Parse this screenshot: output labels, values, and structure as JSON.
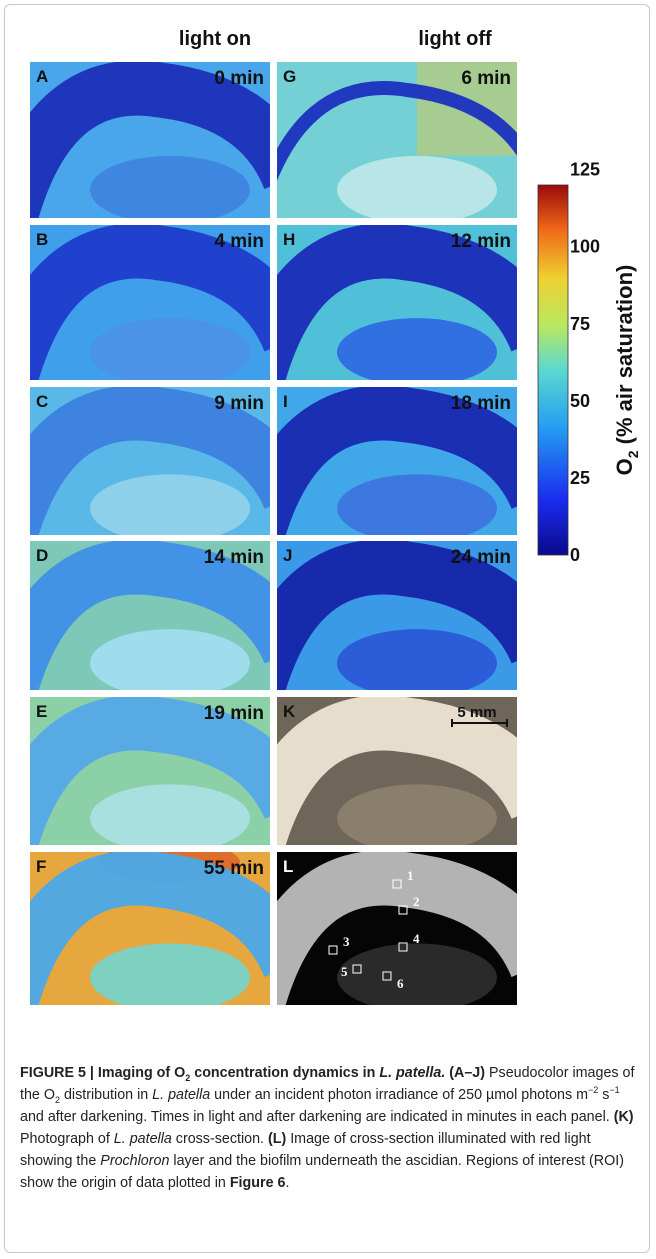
{
  "header": {
    "left": "light on",
    "right": "light off"
  },
  "panels": [
    {
      "letter": "A",
      "time": "0 min"
    },
    {
      "letter": "B",
      "time": "4 min"
    },
    {
      "letter": "C",
      "time": "9 min"
    },
    {
      "letter": "D",
      "time": "14 min"
    },
    {
      "letter": "E",
      "time": "19 min"
    },
    {
      "letter": "F",
      "time": "55 min"
    },
    {
      "letter": "G",
      "time": "6 min"
    },
    {
      "letter": "H",
      "time": "12 min"
    },
    {
      "letter": "I",
      "time": "18 min"
    },
    {
      "letter": "J",
      "time": "24 min"
    },
    {
      "letter": "K",
      "scale": "5 mm"
    },
    {
      "letter": "L",
      "roi": [
        "1",
        "2",
        "3",
        "4",
        "5",
        "6"
      ]
    }
  ],
  "colorbar": {
    "lim": [
      0,
      120
    ],
    "ticks": [
      0,
      25,
      50,
      75,
      100,
      125
    ],
    "label": [
      "O",
      "2",
      " (% air saturation)"
    ]
  },
  "caption": [
    "FIGURE 5 | Imaging of O",
    "2",
    " concentration dynamics in ",
    "L. patella.",
    " (A–J)",
    " Pseudocolor images of the O",
    "2",
    " distribution in ",
    "L. patella",
    " under an incident photon irradiance of 250 µmol photons m",
    "−2",
    " s",
    "−1",
    " and after darkening. Times in light and after darkening are indicated in minutes in each panel. ",
    "(K)",
    " Photograph of ",
    "L. patella",
    " cross-section. ",
    "(L)",
    " Image of cross-section illuminated with red light showing the ",
    "Prochloron",
    " layer and the biofilm underneath the ascidian. Regions of interest (ROI) show the origin of data plotted in ",
    "Figure 6",
    "."
  ]
}
